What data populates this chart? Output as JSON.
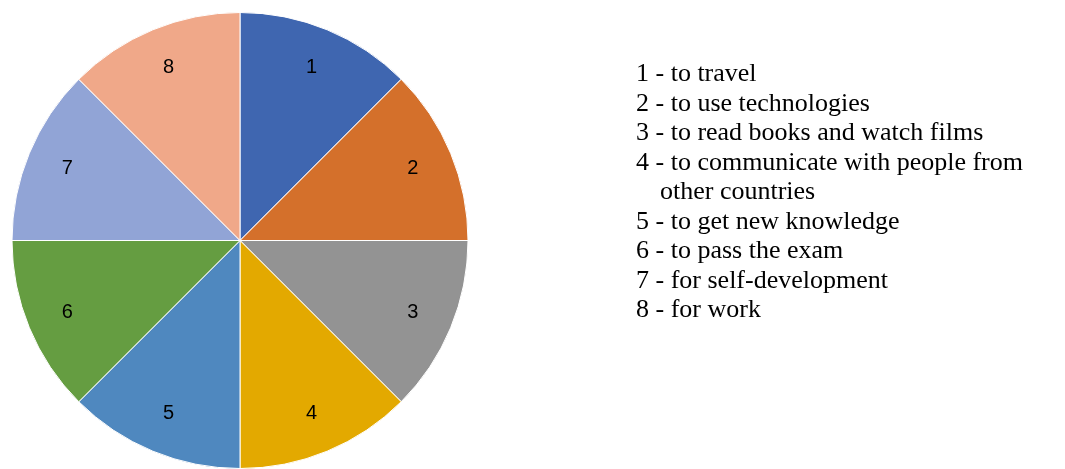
{
  "chart_data": {
    "type": "pie",
    "categories": [
      "1",
      "2",
      "3",
      "4",
      "5",
      "6",
      "7",
      "8"
    ],
    "values": [
      12.5,
      12.5,
      12.5,
      12.5,
      12.5,
      12.5,
      12.5,
      12.5
    ],
    "colors": [
      "#3f66b0",
      "#d4702b",
      "#939393",
      "#e3a900",
      "#4f88bf",
      "#659d41",
      "#91a4d6",
      "#f0a889"
    ],
    "legend": false,
    "annotations": [
      "1 - to travel",
      "2 - to use technologies",
      "3 - to read books and watch films",
      "4 - to communicate with people from other countries",
      "5 - to get new knowledge",
      "6 - to pass the exam",
      "7 - for self-development",
      "8 - for work"
    ]
  }
}
